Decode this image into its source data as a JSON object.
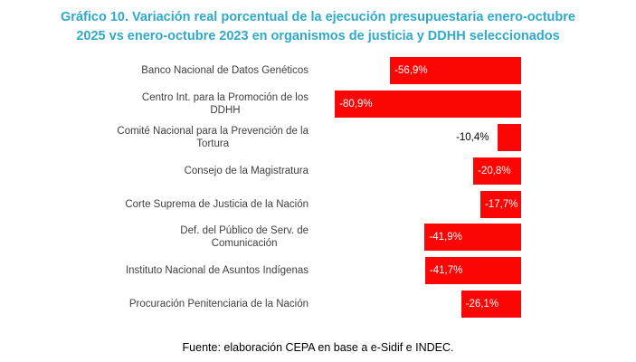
{
  "title": {
    "line1": "Gráfico 10. Variación real porcentual de la ejecución presupuestaria enero-octubre",
    "line2": "2025 vs enero-octubre 2023 en organismos de justicia y DDHH seleccionados"
  },
  "source_note": "Fuente: elaboración CEPA en base a e-Sidif e INDEC.",
  "colors": {
    "title": "#2FA9CB",
    "bar": "#FB0505",
    "category_label": "#404040",
    "value_label_inside": "#FFFFFF",
    "value_label_outside": "#000000",
    "background": "#FFFFFF"
  },
  "chart_data": {
    "type": "bar",
    "orientation": "horizontal",
    "title": "Gráfico 10. Variación real porcentual de la ejecución presupuestaria enero-octubre 2025 vs enero-octubre 2023 en organismos de justicia y DDHH seleccionados",
    "categories": [
      "Banco Nacional de Datos Genéticos",
      "Centro Int. para la Promoción de los DDHH",
      "Comité Nacional para la Prevención de la Tortura",
      "Consejo de la Magistratura",
      "Corte Suprema de Justicia de la Nación",
      "Def. del Público de Serv. de Comunicación",
      "Instituto Nacional de Asuntos Indígenas",
      "Procuración Penitenciaria de la Nación"
    ],
    "category_lines": [
      [
        "Banco Nacional de Datos Genéticos"
      ],
      [
        "Centro Int. para la Promoción de los",
        "DDHH"
      ],
      [
        "Comité Nacional para la Prevención de la",
        "Tortura"
      ],
      [
        "Consejo de la Magistratura"
      ],
      [
        "Corte Suprema de Justicia de la Nación"
      ],
      [
        "Def. del Público de Serv. de",
        "Comunicación"
      ],
      [
        "Instituto Nacional de Asuntos Indígenas"
      ],
      [
        "Procuración Penitenciaria de la Nación"
      ]
    ],
    "values": [
      -56.9,
      -80.9,
      -10.4,
      -20.8,
      -17.7,
      -41.9,
      -41.7,
      -26.1
    ],
    "value_labels": [
      "-56,9%",
      "-80,9%",
      "-10,4%",
      "-20,8%",
      "-17,7%",
      "-41,9%",
      "-41,7%",
      "-26,1%"
    ],
    "unit": "%",
    "xlim": [
      -90,
      0
    ],
    "grid": false,
    "legend": false,
    "bar_color": "#FB0505",
    "source": "Fuente: elaboración CEPA en base a e-Sidif e INDEC."
  }
}
